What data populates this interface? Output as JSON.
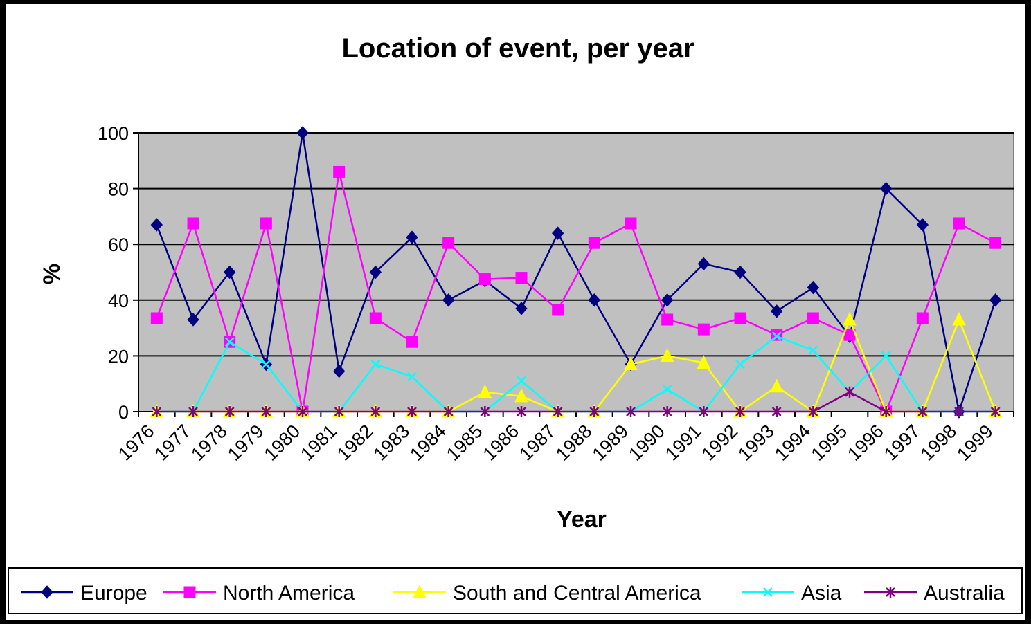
{
  "chart_data": {
    "type": "line",
    "title": "Location of event, per year",
    "xlabel": "Year",
    "ylabel": "%",
    "categories": [
      "1976",
      "1977",
      "1978",
      "1979",
      "1980",
      "1981",
      "1982",
      "1983",
      "1984",
      "1985",
      "1986",
      "1987",
      "1988",
      "1989",
      "1990",
      "1991",
      "1992",
      "1993",
      "1994",
      "1995",
      "1996",
      "1997",
      "1998",
      "1999"
    ],
    "ylim": [
      0,
      100
    ],
    "yticks": [
      0,
      20,
      40,
      60,
      80,
      100
    ],
    "grid": true,
    "legend_position": "bottom",
    "plot_background": "#c0c0c0",
    "series": [
      {
        "name": "Europe",
        "color": "#000080",
        "marker": "diamond",
        "values": [
          67,
          33,
          50,
          17,
          100,
          14.5,
          50,
          62.5,
          40,
          47,
          37,
          64,
          40,
          17,
          40,
          53,
          50,
          36,
          44.5,
          27,
          80,
          67,
          0,
          40
        ]
      },
      {
        "name": "North America",
        "color": "#ff00ff",
        "marker": "square",
        "values": [
          33.5,
          67.5,
          25,
          67.5,
          0,
          86,
          33.5,
          25,
          60.5,
          47.5,
          48,
          36.5,
          60.5,
          67.5,
          33,
          29.5,
          33.5,
          27.5,
          33.5,
          27.5,
          0,
          33.5,
          67.5,
          60.5
        ]
      },
      {
        "name": "South and Central America",
        "color": "#ffff00",
        "marker": "triangle",
        "values": [
          0,
          0,
          0,
          0,
          0,
          0,
          0,
          0,
          0,
          7,
          5.5,
          0,
          0,
          17,
          20,
          17.5,
          0,
          9,
          0,
          33,
          0,
          0,
          33,
          0
        ]
      },
      {
        "name": "Asia",
        "color": "#00ffff",
        "marker": "x",
        "values": [
          0,
          0,
          25,
          17,
          0,
          0,
          17,
          12.5,
          0,
          0,
          11,
          0,
          0,
          0,
          8,
          0,
          17,
          27,
          22,
          7,
          20,
          0,
          0,
          0
        ]
      },
      {
        "name": "Australia",
        "color": "#800080",
        "marker": "star",
        "values": [
          0,
          0,
          0,
          0,
          0,
          0,
          0,
          0,
          0,
          0,
          0,
          0,
          0,
          0,
          0,
          0,
          0,
          0,
          0,
          7,
          0,
          0,
          0,
          0
        ]
      }
    ]
  }
}
